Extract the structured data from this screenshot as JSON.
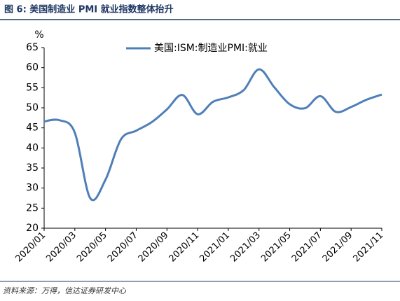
{
  "chart_data": {
    "type": "line",
    "title": "图 6: 美国制造业 PMI 就业指数整体抬升",
    "y_label": "%",
    "source": "资料来源：万得，信达证券研发中心",
    "categories": [
      "2020/01",
      null,
      "2020/03",
      null,
      "2020/05",
      null,
      "2020/07",
      null,
      "2020/09",
      null,
      "2020/11",
      null,
      "2021/01",
      null,
      "2021/03",
      null,
      "2021/05",
      null,
      "2021/07",
      null,
      "2021/09",
      null,
      "2021/11"
    ],
    "series": [
      {
        "name": "美国:ISM:制造业PMI:就业",
        "color": "#4f7fb8",
        "values": [
          46.6,
          46.9,
          43.8,
          27.5,
          32.1,
          42.1,
          44.3,
          46.4,
          49.6,
          53.2,
          48.4,
          51.5,
          52.6,
          54.4,
          59.6,
          55.1,
          50.9,
          49.9,
          52.9,
          49.0,
          50.2,
          52.0,
          53.3
        ]
      }
    ],
    "ylim": [
      20,
      65
    ],
    "yticks": [
      20,
      25,
      30,
      35,
      40,
      45,
      50,
      55,
      60,
      65
    ],
    "legend": "top"
  }
}
